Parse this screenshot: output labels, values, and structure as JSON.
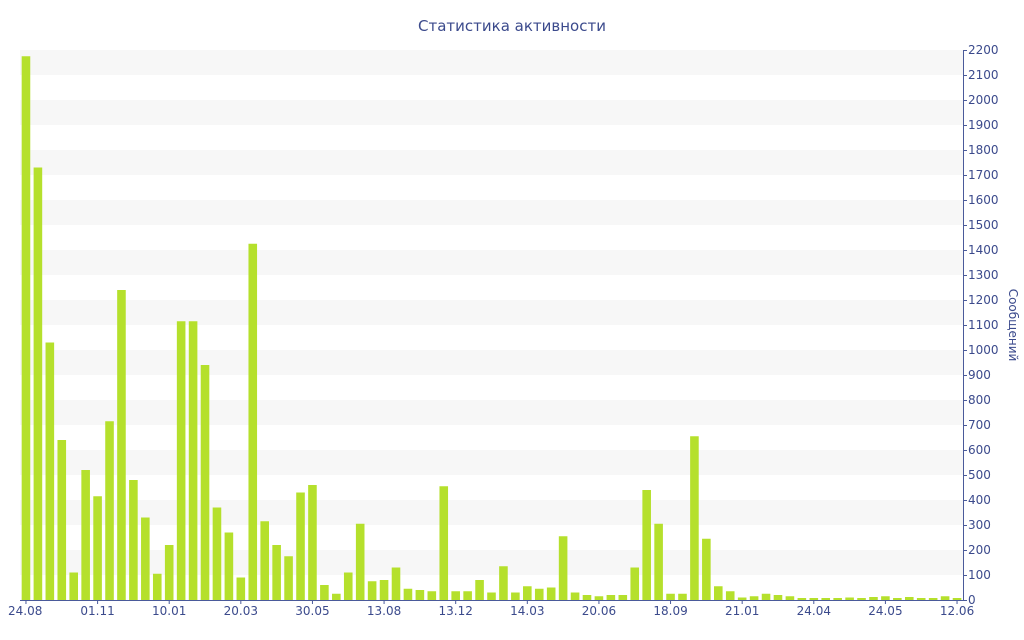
{
  "chart_data": {
    "type": "bar",
    "title": "Статистика активности",
    "xlabel": "",
    "ylabel": "Сообщений",
    "ylim": [
      0,
      2200
    ],
    "yticks": [
      0,
      100,
      200,
      300,
      400,
      500,
      600,
      700,
      800,
      900,
      1000,
      1100,
      1200,
      1300,
      1400,
      1500,
      1600,
      1700,
      1800,
      1900,
      2000,
      2100,
      2200
    ],
    "y_axis_position": "right",
    "grid": "alternating horizontal bands",
    "legend": "none",
    "x_tick_labels": [
      {
        "label": "24.08",
        "index": 0
      },
      {
        "label": "01.11",
        "index": 6
      },
      {
        "label": "10.01",
        "index": 12
      },
      {
        "label": "20.03",
        "index": 18
      },
      {
        "label": "30.05",
        "index": 24
      },
      {
        "label": "13.08",
        "index": 30
      },
      {
        "label": "13.12",
        "index": 36
      },
      {
        "label": "14.03",
        "index": 42
      },
      {
        "label": "20.06",
        "index": 48
      },
      {
        "label": "18.09",
        "index": 54
      },
      {
        "label": "21.01",
        "index": 60
      },
      {
        "label": "24.04",
        "index": 66
      },
      {
        "label": "24.05",
        "index": 72
      },
      {
        "label": "12.06",
        "index": 78
      }
    ],
    "values": [
      2175,
      1730,
      1030,
      640,
      110,
      520,
      415,
      715,
      1240,
      480,
      330,
      105,
      220,
      1115,
      1115,
      940,
      370,
      270,
      90,
      1425,
      315,
      220,
      175,
      430,
      460,
      60,
      25,
      110,
      305,
      75,
      80,
      130,
      45,
      40,
      35,
      455,
      35,
      35,
      80,
      30,
      135,
      30,
      55,
      45,
      50,
      255,
      30,
      20,
      15,
      20,
      20,
      130,
      440,
      305,
      25,
      25,
      655,
      245,
      55,
      35,
      10,
      15,
      25,
      20,
      15,
      8,
      8,
      8,
      8,
      10,
      8,
      12,
      15,
      8,
      12,
      8,
      8,
      15,
      8
    ],
    "colors": {
      "bar": "#b5e02c",
      "text": "#3b4a8c",
      "band": "#f7f7f7"
    }
  }
}
